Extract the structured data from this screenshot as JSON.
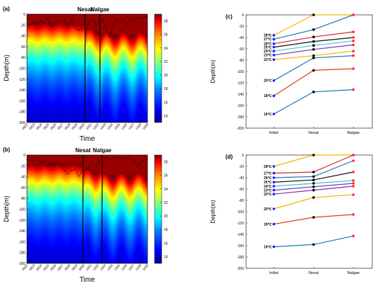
{
  "chart_data": [
    {
      "type": "heatmap",
      "panel_label": "(a)",
      "xlabel": "Time",
      "ylabel": "Depth(m)",
      "x_ticks": [
        "0922",
        "0923",
        "0924",
        "0925",
        "0926",
        "0927",
        "0928",
        "0929",
        "0930",
        "1001",
        "1002",
        "1003",
        "1004",
        "1005",
        "1006",
        "1007",
        "1008",
        "1009"
      ],
      "y_ticks": [
        0,
        -20,
        -40,
        -60,
        -80,
        -100,
        -120,
        -140,
        -160,
        -180,
        -200
      ],
      "ylim": [
        -200,
        0
      ],
      "colorbar_ticks": [
        14,
        16,
        18,
        20,
        22,
        24,
        26,
        28
      ],
      "colorbar_range": [
        13,
        29
      ],
      "events": [
        {
          "name": "Nesat",
          "x": 8.2
        },
        {
          "name": "Nalgae",
          "x": 10.3
        }
      ],
      "mixed_layer_depth": [
        -18,
        -20,
        -14,
        -22,
        -12,
        -17,
        -8,
        -24,
        -20,
        -12,
        -16,
        -8,
        -22,
        -10,
        -27,
        -30,
        -25,
        -32,
        -15,
        -8,
        -20,
        -12,
        -10,
        -28,
        -42,
        -18,
        -8,
        -14,
        -10,
        -20,
        -8,
        -12,
        -6,
        -10,
        -5,
        -4
      ]
    },
    {
      "type": "heatmap",
      "panel_label": "(b)",
      "xlabel": "Time",
      "ylabel": "Depth(m)",
      "x_ticks": [
        "0922",
        "0923",
        "0924",
        "0925",
        "0926",
        "0927",
        "0928",
        "0929",
        "0930",
        "1001",
        "1002",
        "1003",
        "1004",
        "1005",
        "1006",
        "1007",
        "1008",
        "1009"
      ],
      "y_ticks": [
        0,
        -20,
        -40,
        -60,
        -80,
        -100,
        -120,
        -140,
        -160,
        -180,
        -200
      ],
      "ylim": [
        -200,
        0
      ],
      "colorbar_ticks": [
        14,
        16,
        18,
        20,
        22,
        24,
        26,
        28
      ],
      "colorbar_range": [
        13,
        29
      ],
      "events": [
        {
          "name": "Nesat",
          "x": 7.9
        },
        {
          "name": "Nalgae",
          "x": 10.6
        }
      ],
      "mixed_layer_depth": [
        -8,
        -10,
        -12,
        -8,
        -14,
        -10,
        -22,
        -14,
        -18,
        -12,
        -20,
        -30,
        -36,
        -28,
        -26,
        -40,
        -30,
        -26,
        -22,
        -30,
        -24,
        -10,
        -6,
        -4,
        -8,
        -6,
        -4,
        -5,
        -8,
        -4,
        -6,
        -10,
        -22,
        -14,
        -10,
        -8
      ]
    },
    {
      "type": "line",
      "panel_label": "(c)",
      "categories": [
        "Initial",
        "Nesat",
        "Nalgae"
      ],
      "ylabel": "Depth(m)",
      "ylim": [
        -200,
        0
      ],
      "y_ticks": [
        0,
        -20,
        -40,
        -60,
        -80,
        -100,
        -120,
        -140,
        -160,
        -180,
        -200
      ],
      "series": [
        {
          "name": "28℃",
          "color": "#f5b400",
          "values": [
            -36,
            0,
            0
          ]
        },
        {
          "name": "27℃",
          "color": "#1f77b4",
          "values": [
            -43,
            -26,
            0
          ]
        },
        {
          "name": "26℃",
          "color": "#d62728",
          "values": [
            -51,
            -39,
            -30
          ]
        },
        {
          "name": "25℃",
          "color": "#111111",
          "values": [
            -57,
            -47,
            -40
          ]
        },
        {
          "name": "24℃",
          "color": "#42c8c4",
          "values": [
            -64,
            -54,
            -46
          ]
        },
        {
          "name": "23℃",
          "color": "#7b2fbe",
          "values": [
            -71,
            -61,
            -53
          ]
        },
        {
          "name": "22℃",
          "color": "#f5b400",
          "values": [
            -79,
            -72,
            -64
          ]
        },
        {
          "name": "20℃",
          "color": "#1f77b4",
          "values": [
            -116,
            -76,
            -72
          ]
        },
        {
          "name": "18℃",
          "color": "#d84315",
          "values": [
            -143,
            -98,
            -95
          ]
        },
        {
          "name": "16℃",
          "color": "#1f77b4",
          "values": [
            -175,
            -136,
            -132
          ]
        }
      ]
    },
    {
      "type": "line",
      "panel_label": "(d)",
      "categories": [
        "Initial",
        "Nesat",
        "Nalgae"
      ],
      "ylabel": "Depth(m)",
      "ylim": [
        -200,
        0
      ],
      "y_ticks": [
        0,
        -20,
        -40,
        -60,
        -80,
        -100,
        -120,
        -140,
        -160,
        -180,
        -200
      ],
      "series": [
        {
          "name": "28℃",
          "color": "#f5b400",
          "values": [
            -20,
            0,
            0
          ]
        },
        {
          "name": "27℃",
          "color": "#d62728",
          "values": [
            -32,
            -30,
            0
          ]
        },
        {
          "name": "26℃",
          "color": "#1f77b4",
          "values": [
            -40,
            -38,
            -10
          ]
        },
        {
          "name": "25℃",
          "color": "#111111",
          "values": [
            -48,
            -44,
            -30
          ]
        },
        {
          "name": "24℃",
          "color": "#42c8c4",
          "values": [
            -55,
            -50,
            -45
          ]
        },
        {
          "name": "23℃",
          "color": "#7b2fbe",
          "values": [
            -62,
            -56,
            -50
          ]
        },
        {
          "name": "22℃",
          "color": "#7b2fbe",
          "values": [
            -69,
            -62,
            -55
          ]
        },
        {
          "name": "20℃",
          "color": "#f5b400",
          "values": [
            -95,
            -75,
            -70
          ]
        },
        {
          "name": "18℃",
          "color": "#d84315",
          "values": [
            -122,
            -110,
            -105
          ]
        },
        {
          "name": "16℃",
          "color": "#1f77b4",
          "values": [
            -162,
            -158,
            -143
          ]
        }
      ]
    }
  ]
}
